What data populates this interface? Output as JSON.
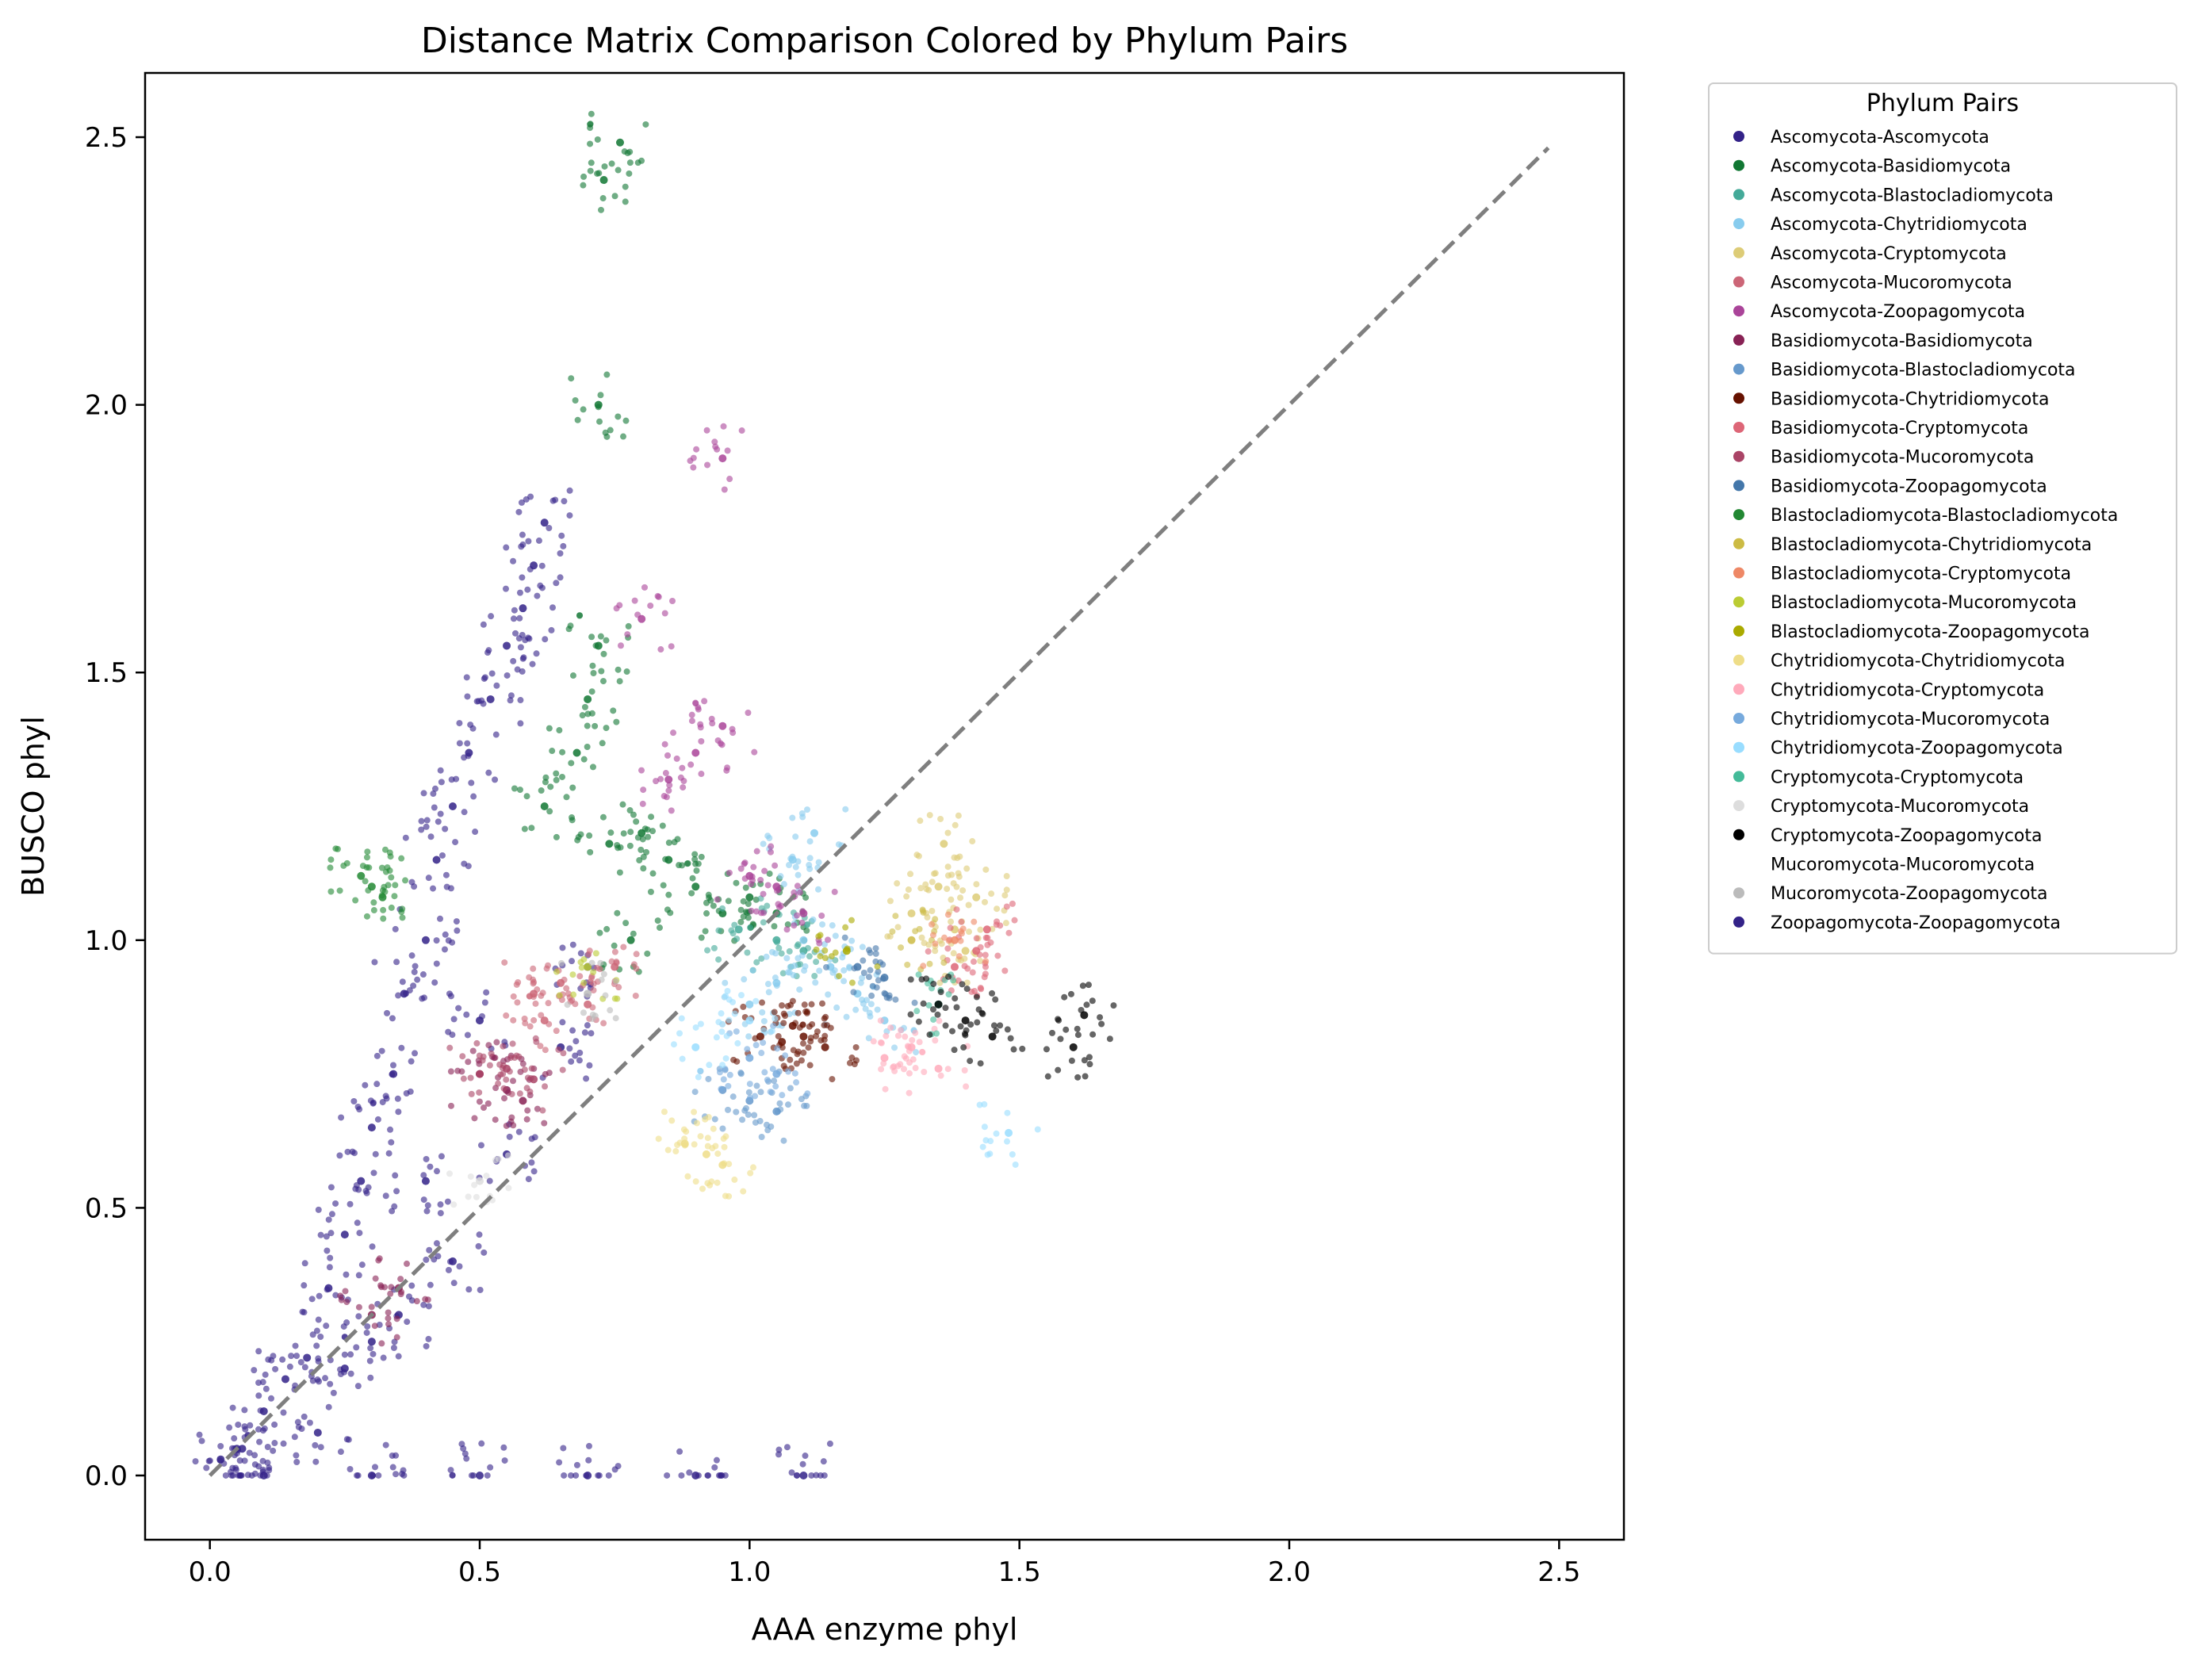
{
  "chart_data": {
    "type": "scatter",
    "title": "Distance Matrix Comparison Colored by Phylum Pairs",
    "xlabel": "AAA enzyme phyl",
    "ylabel": "BUSCO phyl",
    "xlim": [
      -0.12,
      2.62
    ],
    "ylim": [
      -0.12,
      2.62
    ],
    "xticks": [
      0.0,
      0.5,
      1.0,
      1.5,
      2.0,
      2.5
    ],
    "yticks": [
      0.0,
      0.5,
      1.0,
      1.5,
      2.0,
      2.5
    ],
    "xtick_labels": [
      "0.0",
      "0.5",
      "1.0",
      "1.5",
      "2.0",
      "2.5"
    ],
    "ytick_labels": [
      "0.0",
      "0.5",
      "1.0",
      "1.5",
      "2.0",
      "2.5"
    ],
    "grid": false,
    "legend_title": "Phylum Pairs",
    "legend_placement": "outside-upper-right",
    "reference_line": {
      "style": "dashed",
      "color": "#7f7f7f",
      "from": [
        0.0,
        0.0
      ],
      "to": [
        2.48,
        2.48
      ]
    },
    "series": [
      {
        "name": "Ascomycota-Ascomycota",
        "color": "#332288",
        "points": [
          [
            0.02,
            0.03
          ],
          [
            0.06,
            0.05
          ],
          [
            0.1,
            0.12
          ],
          [
            0.14,
            0.18
          ],
          [
            0.18,
            0.22
          ],
          [
            0.22,
            0.35
          ],
          [
            0.25,
            0.45
          ],
          [
            0.28,
            0.55
          ],
          [
            0.3,
            0.65
          ],
          [
            0.34,
            0.75
          ],
          [
            0.36,
            0.9
          ],
          [
            0.4,
            1.0
          ],
          [
            0.42,
            1.15
          ],
          [
            0.45,
            1.25
          ],
          [
            0.48,
            1.35
          ],
          [
            0.52,
            1.45
          ],
          [
            0.55,
            1.55
          ],
          [
            0.58,
            1.62
          ],
          [
            0.6,
            1.7
          ],
          [
            0.62,
            1.78
          ],
          [
            0.25,
            0.2
          ],
          [
            0.35,
            0.3
          ],
          [
            0.45,
            0.4
          ],
          [
            0.55,
            0.6
          ],
          [
            0.65,
            0.8
          ],
          [
            0.7,
            0.95
          ],
          [
            0.5,
            0.85
          ],
          [
            0.4,
            0.55
          ],
          [
            0.3,
            0.25
          ],
          [
            0.2,
            0.08
          ]
        ]
      },
      {
        "name": "Ascomycota-Basidiomycota",
        "color": "#117733",
        "points": [
          [
            0.62,
            1.25
          ],
          [
            0.68,
            1.35
          ],
          [
            0.7,
            1.45
          ],
          [
            0.72,
            1.55
          ],
          [
            0.74,
            1.18
          ],
          [
            0.8,
            1.2
          ],
          [
            0.85,
            1.15
          ],
          [
            0.9,
            1.1
          ],
          [
            0.95,
            1.05
          ],
          [
            1.0,
            1.08
          ],
          [
            1.05,
            1.05
          ],
          [
            0.78,
            1.0
          ],
          [
            0.72,
            2.0
          ],
          [
            0.73,
            2.42
          ],
          [
            0.76,
            2.49
          ]
        ]
      },
      {
        "name": "Ascomycota-Blastocladiomycota",
        "color": "#44AA99",
        "points": [
          [
            0.98,
            1.02
          ],
          [
            1.05,
            1.0
          ],
          [
            1.1,
            0.98
          ]
        ]
      },
      {
        "name": "Ascomycota-Chytridiomycota",
        "color": "#88CCEE",
        "points": [
          [
            1.0,
            0.88
          ],
          [
            1.05,
            0.92
          ],
          [
            1.1,
            1.0
          ],
          [
            1.15,
            0.95
          ],
          [
            1.2,
            0.9
          ],
          [
            1.25,
            0.85
          ],
          [
            1.12,
            1.2
          ],
          [
            1.08,
            1.15
          ]
        ]
      },
      {
        "name": "Ascomycota-Cryptomycota",
        "color": "#DDCC77",
        "points": [
          [
            1.3,
            1.05
          ],
          [
            1.35,
            1.1
          ],
          [
            1.38,
            1.02
          ],
          [
            1.4,
            0.98
          ],
          [
            1.42,
            1.08
          ],
          [
            1.36,
            1.18
          ]
        ]
      },
      {
        "name": "Ascomycota-Mucoromycota",
        "color": "#CC6677",
        "points": [
          [
            0.6,
            0.9
          ],
          [
            0.65,
            0.92
          ],
          [
            0.7,
            0.88
          ],
          [
            0.75,
            0.95
          ],
          [
            0.62,
            0.85
          ]
        ]
      },
      {
        "name": "Ascomycota-Zoopagomycota",
        "color": "#AA4499",
        "points": [
          [
            0.85,
            1.3
          ],
          [
            0.9,
            1.35
          ],
          [
            0.95,
            1.4
          ],
          [
            1.0,
            1.12
          ],
          [
            1.05,
            1.1
          ],
          [
            1.1,
            1.05
          ],
          [
            0.8,
            1.6
          ],
          [
            0.95,
            1.9
          ]
        ]
      },
      {
        "name": "Basidiomycota-Basidiomycota",
        "color": "#882255",
        "points": [
          [
            0.5,
            0.75
          ],
          [
            0.55,
            0.72
          ],
          [
            0.58,
            0.7
          ],
          [
            0.3,
            0.3
          ],
          [
            0.35,
            0.35
          ]
        ]
      },
      {
        "name": "Basidiomycota-Blastocladiomycota",
        "color": "#6699CC",
        "points": [
          [
            0.95,
            0.72
          ],
          [
            1.0,
            0.7
          ],
          [
            1.05,
            0.68
          ]
        ]
      },
      {
        "name": "Basidiomycota-Chytridiomycota",
        "color": "#661100",
        "points": [
          [
            1.02,
            0.82
          ],
          [
            1.06,
            0.81
          ],
          [
            1.1,
            0.82
          ],
          [
            1.14,
            0.8
          ],
          [
            1.08,
            0.84
          ]
        ]
      },
      {
        "name": "Basidiomycota-Cryptomycota",
        "color": "#DD6677",
        "points": [
          [
            1.38,
            0.95
          ],
          [
            1.42,
            0.98
          ],
          [
            1.44,
            1.02
          ]
        ]
      },
      {
        "name": "Basidiomycota-Mucoromycota",
        "color": "#AA4466",
        "points": [
          [
            0.5,
            0.75
          ],
          [
            0.55,
            0.76
          ],
          [
            0.6,
            0.74
          ]
        ]
      },
      {
        "name": "Basidiomycota-Zoopagomycota",
        "color": "#4477AA",
        "points": [
          [
            1.2,
            0.95
          ],
          [
            1.25,
            0.93
          ]
        ]
      },
      {
        "name": "Blastocladiomycota-Blastocladiomycota",
        "color": "#228833",
        "points": [
          [
            0.28,
            1.12
          ],
          [
            0.3,
            1.1
          ],
          [
            0.32,
            1.08
          ]
        ]
      },
      {
        "name": "Blastocladiomycota-Chytridiomycota",
        "color": "#CCBB44",
        "points": [
          [
            1.3,
            1.0
          ]
        ]
      },
      {
        "name": "Blastocladiomycota-Cryptomycota",
        "color": "#EE8866",
        "points": [
          [
            1.38,
            1.0
          ]
        ]
      },
      {
        "name": "Blastocladiomycota-Mucoromycota",
        "color": "#BBCC33",
        "points": [
          [
            0.7,
            0.95
          ]
        ]
      },
      {
        "name": "Blastocladiomycota-Zoopagomycota",
        "color": "#AAAA00",
        "points": [
          [
            1.18,
            0.98
          ]
        ]
      },
      {
        "name": "Chytridiomycota-Chytridiomycota",
        "color": "#EEDD88",
        "points": [
          [
            0.88,
            0.62
          ],
          [
            0.92,
            0.6
          ],
          [
            0.95,
            0.58
          ]
        ]
      },
      {
        "name": "Chytridiomycota-Cryptomycota",
        "color": "#FFAABB",
        "points": [
          [
            1.25,
            0.78
          ],
          [
            1.3,
            0.8
          ],
          [
            1.35,
            0.76
          ]
        ]
      },
      {
        "name": "Chytridiomycota-Mucoromycota",
        "color": "#77AADD",
        "points": [
          [
            1.0,
            0.78
          ],
          [
            1.05,
            0.75
          ]
        ]
      },
      {
        "name": "Chytridiomycota-Zoopagomycota",
        "color": "#99DDFF",
        "points": [
          [
            0.9,
            0.8
          ],
          [
            1.0,
            0.85
          ],
          [
            1.48,
            0.64
          ]
        ]
      },
      {
        "name": "Cryptomycota-Cryptomycota",
        "color": "#44BB99",
        "points": [
          [
            1.35,
            0.88
          ]
        ]
      },
      {
        "name": "Cryptomycota-Mucoromycota",
        "color": "#DDDDDD",
        "points": [
          [
            0.5,
            0.55
          ]
        ]
      },
      {
        "name": "Cryptomycota-Zoopagomycota",
        "color": "#000000",
        "points": [
          [
            1.35,
            0.88
          ],
          [
            1.4,
            0.85
          ],
          [
            1.45,
            0.82
          ],
          [
            1.6,
            0.8
          ],
          [
            1.62,
            0.86
          ]
        ]
      },
      {
        "name": "Mucoromycota-Mucoromycota",
        "color": "#FFFFFF",
        "points": []
      },
      {
        "name": "Mucoromycota-Zoopagomycota",
        "color": "#BBBBBB",
        "points": [
          [
            0.7,
            0.9
          ]
        ]
      },
      {
        "name": "Zoopagomycota-Zoopagomycota",
        "color": "#332288",
        "points": [
          [
            0.1,
            0.0
          ],
          [
            0.3,
            0.0
          ],
          [
            0.5,
            0.0
          ],
          [
            0.7,
            0.0
          ],
          [
            0.9,
            0.0
          ],
          [
            1.1,
            0.0
          ],
          [
            0.05,
            0.05
          ]
        ]
      }
    ]
  }
}
